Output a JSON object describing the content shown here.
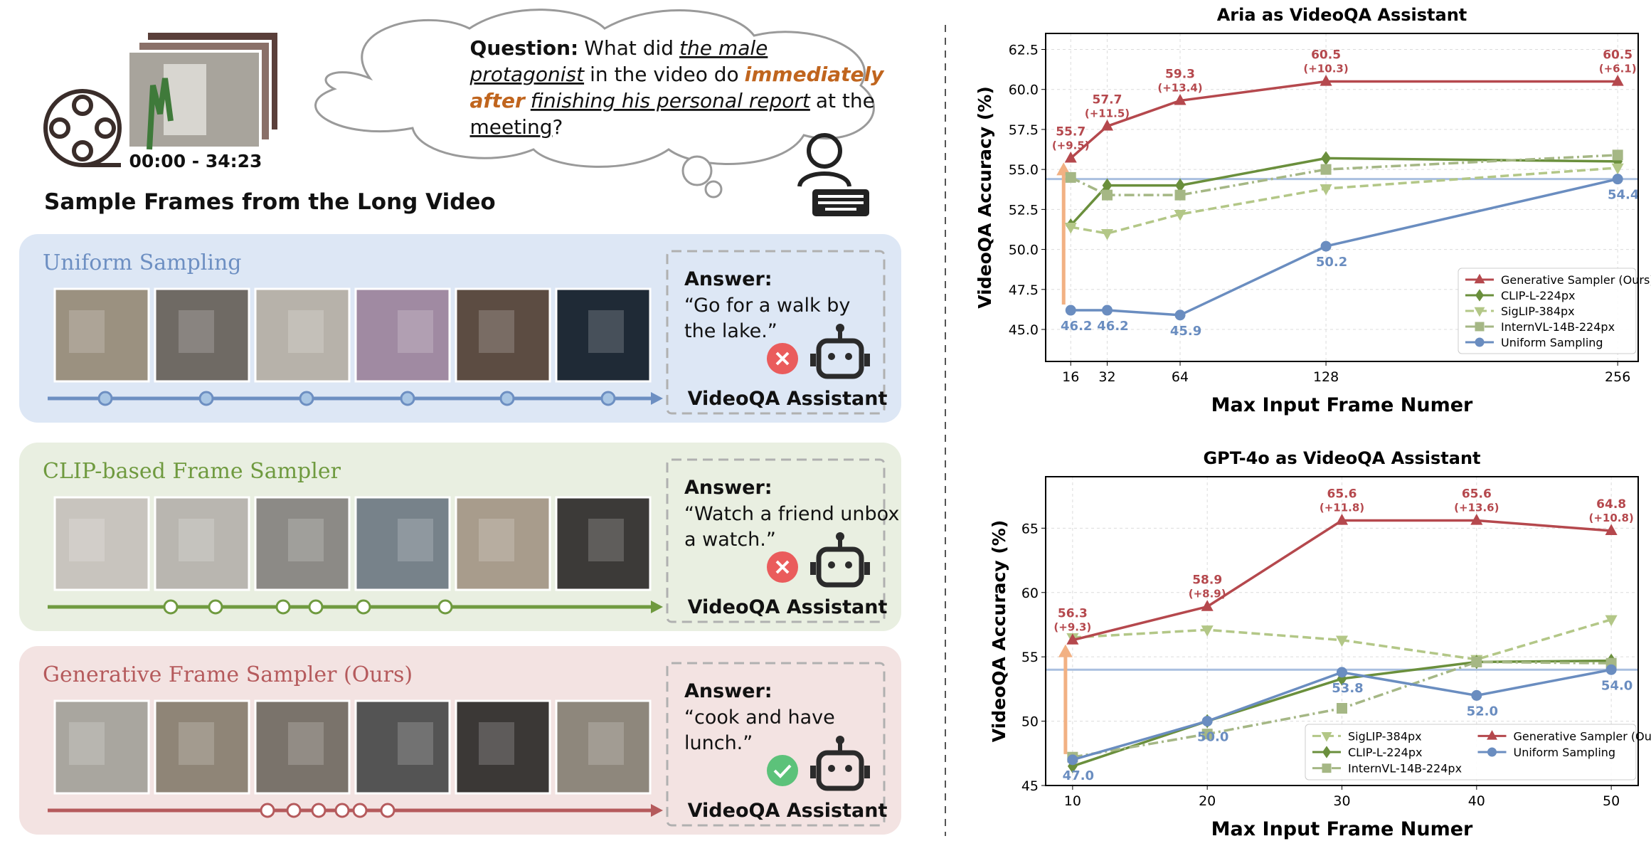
{
  "figure": {
    "time_range": "00:00 - 34:23",
    "frames_caption": "Sample Frames from the Long Video",
    "question": {
      "label": "Question:",
      "lines": [
        [
          "What did",
          "the male"
        ],
        [
          "protagonist",
          "in the video do",
          "immediately"
        ],
        [
          "after",
          "finishing his personal report",
          "at the"
        ],
        [
          "meeting",
          "?"
        ]
      ]
    },
    "panels": [
      {
        "title": "Uniform Sampling",
        "answer_label": "Answer:",
        "answer_lines": [
          "“Go for a walk by",
          "the lake.”"
        ],
        "assistant": "VideoQA Assistant"
      },
      {
        "title": "CLIP-based Frame Sampler",
        "answer_label": "Answer:",
        "answer_lines": [
          "“Watch a friend unbox",
          "a watch.”"
        ],
        "assistant": "VideoQA Assistant"
      },
      {
        "title": "Generative Frame Sampler (Ours)",
        "answer_label": "Answer:",
        "answer_lines": [
          "“cook and have",
          "lunch.”"
        ],
        "assistant": "VideoQA Assistant"
      }
    ]
  },
  "chart_data": [
    {
      "type": "line",
      "title": "Aria as VideoQA Assistant",
      "x_label": "Max Input Frame Numer",
      "y_label": "VideoQA Accuracy (%)",
      "x": [
        16,
        32,
        64,
        128,
        256
      ],
      "xlim": [
        5,
        265
      ],
      "xticks": [
        16,
        32,
        64,
        128,
        256
      ],
      "ylim": [
        43,
        63.5
      ],
      "yticks": [
        {
          "value": 45,
          "label": "45.0"
        },
        47.5,
        {
          "value": 50,
          "label": "50.0"
        },
        52.5,
        {
          "value": 55,
          "label": "55.0"
        },
        57.5,
        {
          "value": 60,
          "label": "60.0"
        },
        62.5
      ],
      "grid": true,
      "hline": 54.4,
      "legend": "lower right",
      "legend_columns": 1,
      "series": [
        {
          "name": "Generative Sampler (Ours)",
          "color": "#b5484d",
          "marker": "triangle",
          "linestyle": "solid",
          "values": [
            55.7,
            57.7,
            59.3,
            60.5,
            60.5
          ],
          "value_labels": [
            "55.7",
            "57.7",
            "59.3",
            "60.5",
            "60.5"
          ],
          "gain_labels": [
            "(+9.5)",
            "(+11.5)",
            "(+13.4)",
            "(+10.3)",
            "(+6.1)"
          ]
        },
        {
          "name": "CLIP-L-224px",
          "color": "#6a8f3c",
          "marker": "diamond",
          "linestyle": "solid",
          "values": [
            51.5,
            54.0,
            54.0,
            55.7,
            55.5
          ]
        },
        {
          "name": "SigLIP-384px",
          "color": "#b3c787",
          "marker": "triangle-down",
          "linestyle": "dashed",
          "values": [
            51.4,
            51.0,
            52.2,
            53.8,
            55.1
          ]
        },
        {
          "name": "InternVL-14B-224px",
          "color": "#a5b785",
          "marker": "square",
          "linestyle": "dashdot",
          "values": [
            54.5,
            53.4,
            53.4,
            55.0,
            55.9
          ]
        },
        {
          "name": "Uniform Sampling",
          "color": "#6a8dc0",
          "marker": "circle",
          "linestyle": "solid",
          "values": [
            46.2,
            46.2,
            45.9,
            50.2,
            54.4
          ],
          "value_labels": [
            "46.2",
            "46.2",
            "45.9",
            "50.2",
            "54.4"
          ]
        }
      ]
    },
    {
      "type": "line",
      "title": "GPT-4o as VideoQA Assistant",
      "x_label": "Max Input Frame Numer",
      "y_label": "VideoQA Accuracy (%)",
      "x": [
        10,
        20,
        30,
        40,
        50
      ],
      "xlim": [
        8,
        52
      ],
      "xticks": [
        10,
        20,
        30,
        40,
        50
      ],
      "ylim": [
        45,
        69
      ],
      "yticks": [
        45,
        50,
        55,
        60,
        65
      ],
      "grid": true,
      "hline": 54.0,
      "legend": "lower right",
      "legend_columns": 2,
      "series": [
        {
          "name": "SigLIP-384px",
          "color": "#b3c787",
          "marker": "triangle-down",
          "linestyle": "dashed",
          "values": [
            56.5,
            57.1,
            56.3,
            54.8,
            57.9
          ]
        },
        {
          "name": "CLIP-L-224px",
          "color": "#6a8f3c",
          "marker": "diamond",
          "linestyle": "solid",
          "values": [
            46.5,
            50.0,
            53.3,
            54.6,
            54.7
          ]
        },
        {
          "name": "InternVL-14B-224px",
          "color": "#a5b785",
          "marker": "square",
          "linestyle": "dashdot",
          "values": [
            47.2,
            49.0,
            51.0,
            54.6,
            54.5
          ]
        },
        {
          "name": "Generative Sampler (Ours)",
          "color": "#b5484d",
          "marker": "triangle",
          "linestyle": "solid",
          "values": [
            56.3,
            58.9,
            65.6,
            65.6,
            64.8
          ],
          "value_labels": [
            "56.3",
            "58.9",
            "65.6",
            "65.6",
            "64.8"
          ],
          "gain_labels": [
            "(+9.3)",
            "(+8.9)",
            "(+11.8)",
            "(+13.6)",
            "(+10.8)"
          ]
        },
        {
          "name": "Uniform Sampling",
          "color": "#6a8dc0",
          "marker": "circle",
          "linestyle": "solid",
          "values": [
            47.0,
            50.0,
            53.8,
            52.0,
            54.0
          ],
          "value_labels": [
            "47.0",
            "50.0",
            "53.8",
            "52.0",
            "54.0"
          ]
        }
      ]
    }
  ]
}
